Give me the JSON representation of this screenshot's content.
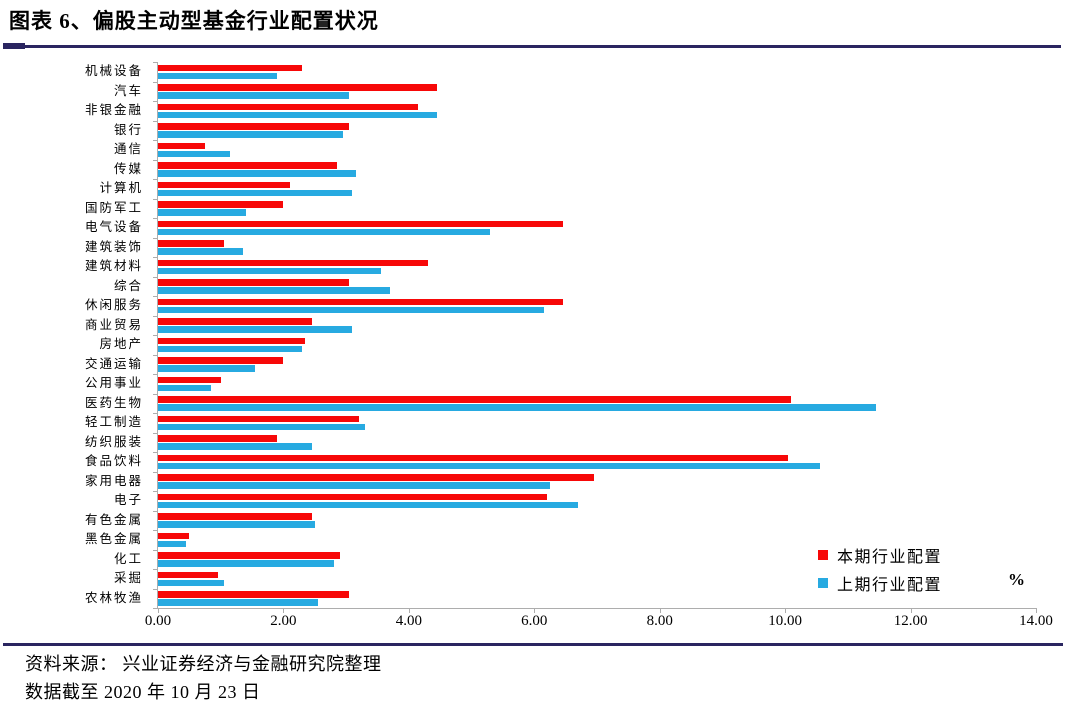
{
  "page": {
    "title": "图表 6、偏股主动型基金行业配置状况",
    "source_line": "资料来源： 兴业证券经济与金融研究院整理",
    "date_line": "数据截至 2020 年 10 月 23 日"
  },
  "colors": {
    "current": "#f70808",
    "previous": "#27aae1",
    "accent_rule": "#2a2560",
    "axis": "#adadad"
  },
  "chart_data": {
    "type": "bar",
    "orientation": "horizontal",
    "title": "偏股主动型基金行业配置状况",
    "unit_label": "%",
    "xlim": [
      0,
      14
    ],
    "x_ticks": [
      "0.00",
      "2.00",
      "4.00",
      "6.00",
      "8.00",
      "10.00",
      "12.00",
      "14.00"
    ],
    "x_tick_values": [
      0,
      2,
      4,
      6,
      8,
      10,
      12,
      14
    ],
    "grid": false,
    "legend_position": "bottom-right",
    "categories": [
      "机械设备",
      "汽车",
      "非银金融",
      "银行",
      "通信",
      "传媒",
      "计算机",
      "国防军工",
      "电气设备",
      "建筑装饰",
      "建筑材料",
      "综合",
      "休闲服务",
      "商业贸易",
      "房地产",
      "交通运输",
      "公用事业",
      "医药生物",
      "轻工制造",
      "纺织服装",
      "食品饮料",
      "家用电器",
      "电子",
      "有色金属",
      "黑色金属",
      "化工",
      "采掘",
      "农林牧渔"
    ],
    "series": [
      {
        "name": "本期行业配置",
        "color": "#f70808",
        "values": [
          2.3,
          4.45,
          4.15,
          3.05,
          0.75,
          2.85,
          2.1,
          2.0,
          6.45,
          1.05,
          4.3,
          3.05,
          6.45,
          2.45,
          2.35,
          2.0,
          1.0,
          10.1,
          3.2,
          1.9,
          10.05,
          6.95,
          6.2,
          2.45,
          0.5,
          2.9,
          0.95,
          3.05
        ]
      },
      {
        "name": "上期行业配置",
        "color": "#27aae1",
        "values": [
          1.9,
          3.05,
          4.45,
          2.95,
          1.15,
          3.15,
          3.1,
          1.4,
          5.3,
          1.35,
          3.55,
          3.7,
          6.15,
          3.1,
          2.3,
          1.55,
          0.85,
          11.45,
          3.3,
          2.45,
          10.55,
          6.25,
          6.7,
          2.5,
          0.45,
          2.8,
          1.05,
          2.55
        ]
      }
    ]
  }
}
